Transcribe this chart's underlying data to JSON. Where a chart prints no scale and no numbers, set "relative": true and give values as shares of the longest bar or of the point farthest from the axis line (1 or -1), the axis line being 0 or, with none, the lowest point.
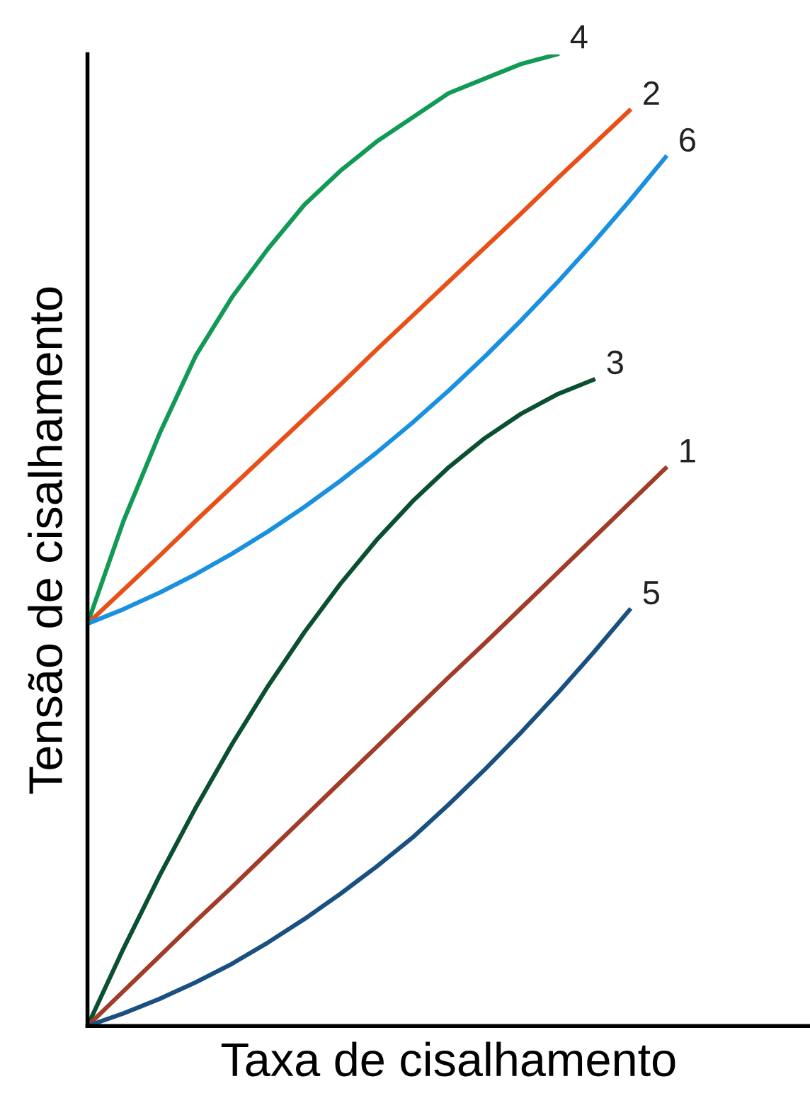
{
  "chart_data": {
    "type": "line",
    "relative": true,
    "xlabel": "Taxa de cisalhamento",
    "ylabel": "Tensão de cisalhamento",
    "tick_labels": false,
    "marker": "none",
    "line_style": "solid",
    "categories": [
      null,
      null,
      null,
      null,
      null,
      null,
      null,
      null,
      null,
      null,
      null,
      null,
      null,
      null,
      null,
      null,
      null
    ],
    "series": [
      {
        "name": "4",
        "color": "#119a55",
        "values": [
          0.414,
          0.52,
          0.61,
          0.69,
          0.75,
          0.8,
          0.845,
          0.88,
          0.91,
          0.935,
          0.96,
          0.975,
          0.99,
          1.0,
          null,
          null,
          null
        ]
      },
      {
        "name": "2",
        "color": "#e8501a",
        "values": [
          0.414,
          0.449,
          0.484,
          0.52,
          0.555,
          0.59,
          0.625,
          0.66,
          0.696,
          0.731,
          0.766,
          0.801,
          0.836,
          0.872,
          0.907,
          0.942,
          null
        ]
      },
      {
        "name": "6",
        "color": "#1a90e0",
        "values": [
          0.414,
          0.429,
          0.446,
          0.465,
          0.486,
          0.509,
          0.534,
          0.561,
          0.59,
          0.621,
          0.654,
          0.689,
          0.726,
          0.765,
          0.806,
          0.849,
          0.894
        ]
      },
      {
        "name": "3",
        "color": "#0a5030",
        "values": [
          0,
          0.08,
          0.155,
          0.225,
          0.29,
          0.35,
          0.405,
          0.455,
          0.5,
          0.54,
          0.575,
          0.605,
          0.63,
          0.65,
          0.665,
          null,
          null
        ]
      },
      {
        "name": "1",
        "color": "#a03c28",
        "values": [
          0,
          0.036,
          0.072,
          0.108,
          0.143,
          0.179,
          0.215,
          0.251,
          0.287,
          0.323,
          0.359,
          0.394,
          0.43,
          0.466,
          0.502,
          0.538,
          0.574
        ]
      },
      {
        "name": "5",
        "color": "#1a5080",
        "values": [
          0,
          0.013,
          0.028,
          0.045,
          0.064,
          0.086,
          0.11,
          0.136,
          0.164,
          0.194,
          0.228,
          0.264,
          0.302,
          0.342,
          0.384,
          0.428,
          null
        ]
      }
    ]
  }
}
